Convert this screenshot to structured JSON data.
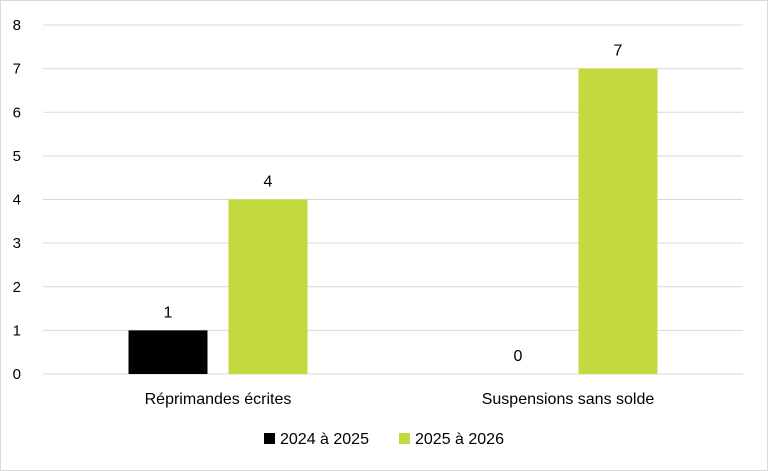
{
  "chart_data": {
    "type": "bar",
    "title": "",
    "xlabel": "",
    "ylabel": "",
    "categories": [
      "Réprimandes écrites",
      "Suspensions sans solde"
    ],
    "series": [
      {
        "name": "2024 à 2025",
        "values": [
          1,
          0
        ],
        "color": "#000000"
      },
      {
        "name": "2025 à 2026",
        "values": [
          4,
          7
        ],
        "color": "#c4d93e"
      }
    ],
    "ylim": [
      0,
      8
    ],
    "yticks": [
      0,
      1,
      2,
      3,
      4,
      5,
      6,
      7,
      8
    ],
    "grid": true,
    "legend_position": "bottom",
    "data_labels": true
  }
}
